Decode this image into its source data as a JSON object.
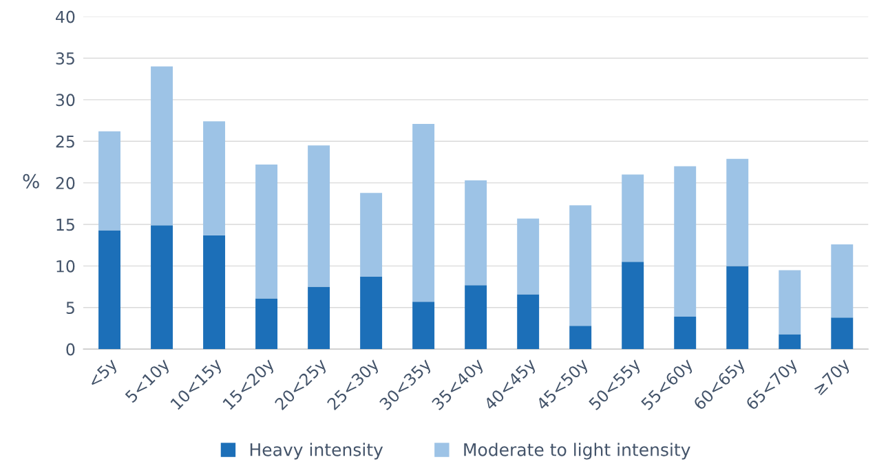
{
  "chart_data": {
    "type": "bar",
    "stacked": true,
    "ylabel": "%",
    "categories": [
      "<5y",
      "5<10y",
      "10<15y",
      "15<20y",
      "20<25y",
      "25<30y",
      "30<35y",
      "35<40y",
      "40<45y",
      "45<50y",
      "50<55y",
      "55<60y",
      "60<65y",
      "65<70y",
      "≥70y"
    ],
    "series": [
      {
        "name": "Heavy intensity",
        "color": "#1c6fb8",
        "values": [
          14.3,
          14.9,
          13.7,
          6.1,
          7.5,
          8.7,
          5.7,
          7.7,
          6.6,
          2.8,
          10.5,
          3.9,
          10.0,
          1.8,
          3.8
        ]
      },
      {
        "name": "Moderate to light intensity",
        "color": "#9dc3e6",
        "values": [
          11.9,
          19.1,
          13.7,
          16.1,
          17.0,
          10.1,
          21.4,
          12.6,
          9.1,
          14.5,
          10.5,
          18.1,
          12.9,
          7.7,
          8.8
        ]
      }
    ],
    "ylim": [
      0,
      40
    ],
    "yticks": [
      0,
      5,
      10,
      15,
      20,
      25,
      30,
      35,
      40
    ],
    "grid": "y",
    "legend": "bottom"
  }
}
